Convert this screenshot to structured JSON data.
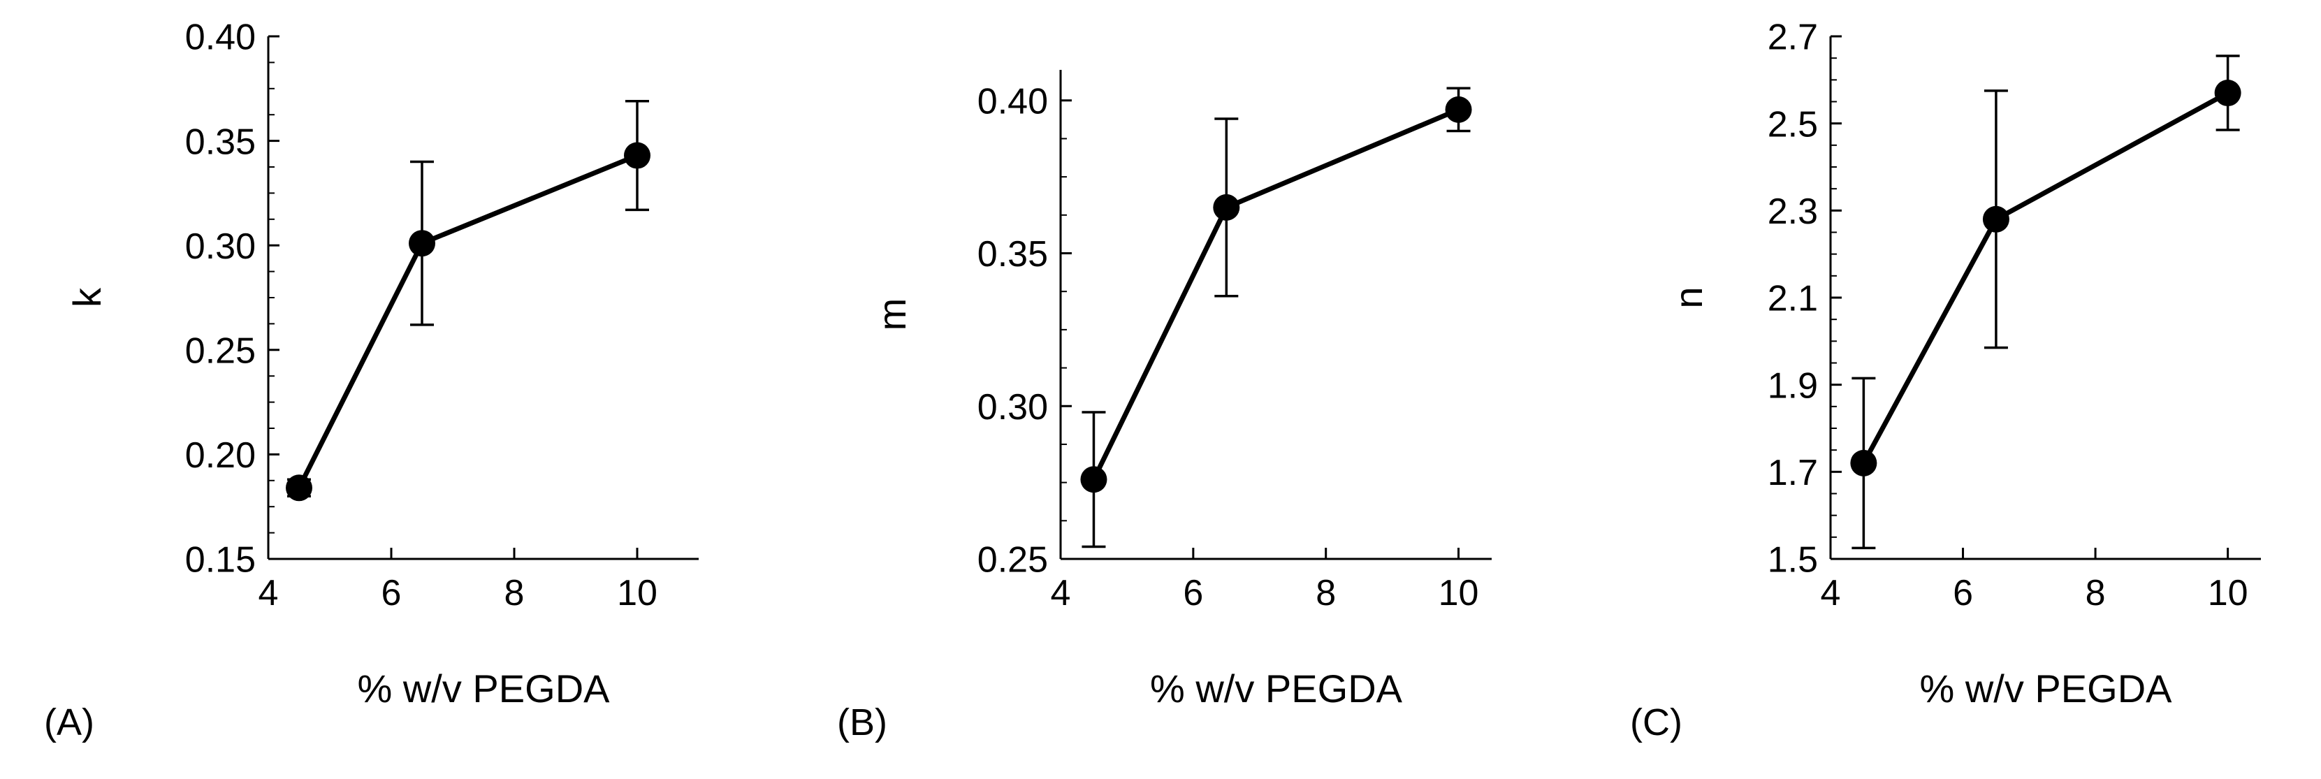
{
  "chart_data": [
    {
      "type": "line",
      "panel_label": "(A)",
      "xlabel": "% w/v PEGDA",
      "ylabel": "k",
      "xlim": [
        4,
        11
      ],
      "ylim": [
        0.15,
        0.4
      ],
      "xticks": [
        4,
        6,
        8,
        10
      ],
      "yticks": [
        0.15,
        0.2,
        0.25,
        0.3,
        0.35,
        0.4
      ],
      "ytick_labels": [
        "0.15",
        "0.20",
        "0.25",
        "0.30",
        "0.35",
        "0.40"
      ],
      "grid": false,
      "series": [
        {
          "x": [
            4.5,
            6.5,
            10
          ],
          "y": [
            0.184,
            0.301,
            0.343
          ],
          "error": [
            0.004,
            0.039,
            0.026
          ],
          "color": "#000000"
        }
      ]
    },
    {
      "type": "line",
      "panel_label": "(B)",
      "xlabel": "% w/v PEGDA",
      "ylabel": "m",
      "xlim": [
        4,
        10.5
      ],
      "ylim": [
        0.25,
        0.41
      ],
      "xticks": [
        4,
        6,
        8,
        10
      ],
      "yticks": [
        0.25,
        0.3,
        0.35,
        0.4
      ],
      "ytick_labels": [
        "0.25",
        "0.30",
        "0.35",
        "0.40"
      ],
      "grid": false,
      "series": [
        {
          "x": [
            4.5,
            6.5,
            10
          ],
          "y": [
            0.276,
            0.365,
            0.397
          ],
          "error": [
            0.022,
            0.029,
            0.007
          ],
          "color": "#000000"
        }
      ]
    },
    {
      "type": "line",
      "panel_label": "(C)",
      "xlabel": "% w/v PEGDA",
      "ylabel": "n",
      "xlim": [
        4,
        10.5
      ],
      "ylim": [
        1.5,
        2.7
      ],
      "xticks": [
        4,
        6,
        8,
        10
      ],
      "yticks": [
        1.5,
        1.7,
        1.9,
        2.1,
        2.3,
        2.5,
        2.7
      ],
      "ytick_labels": [
        "1.5",
        "1.7",
        "1.9",
        "2.1",
        "2.3",
        "2.5",
        "2.7"
      ],
      "grid": false,
      "series": [
        {
          "x": [
            4.5,
            6.5,
            10
          ],
          "y": [
            1.72,
            2.28,
            2.57
          ],
          "error": [
            0.195,
            0.295,
            0.085
          ],
          "color": "#000000"
        }
      ]
    }
  ]
}
